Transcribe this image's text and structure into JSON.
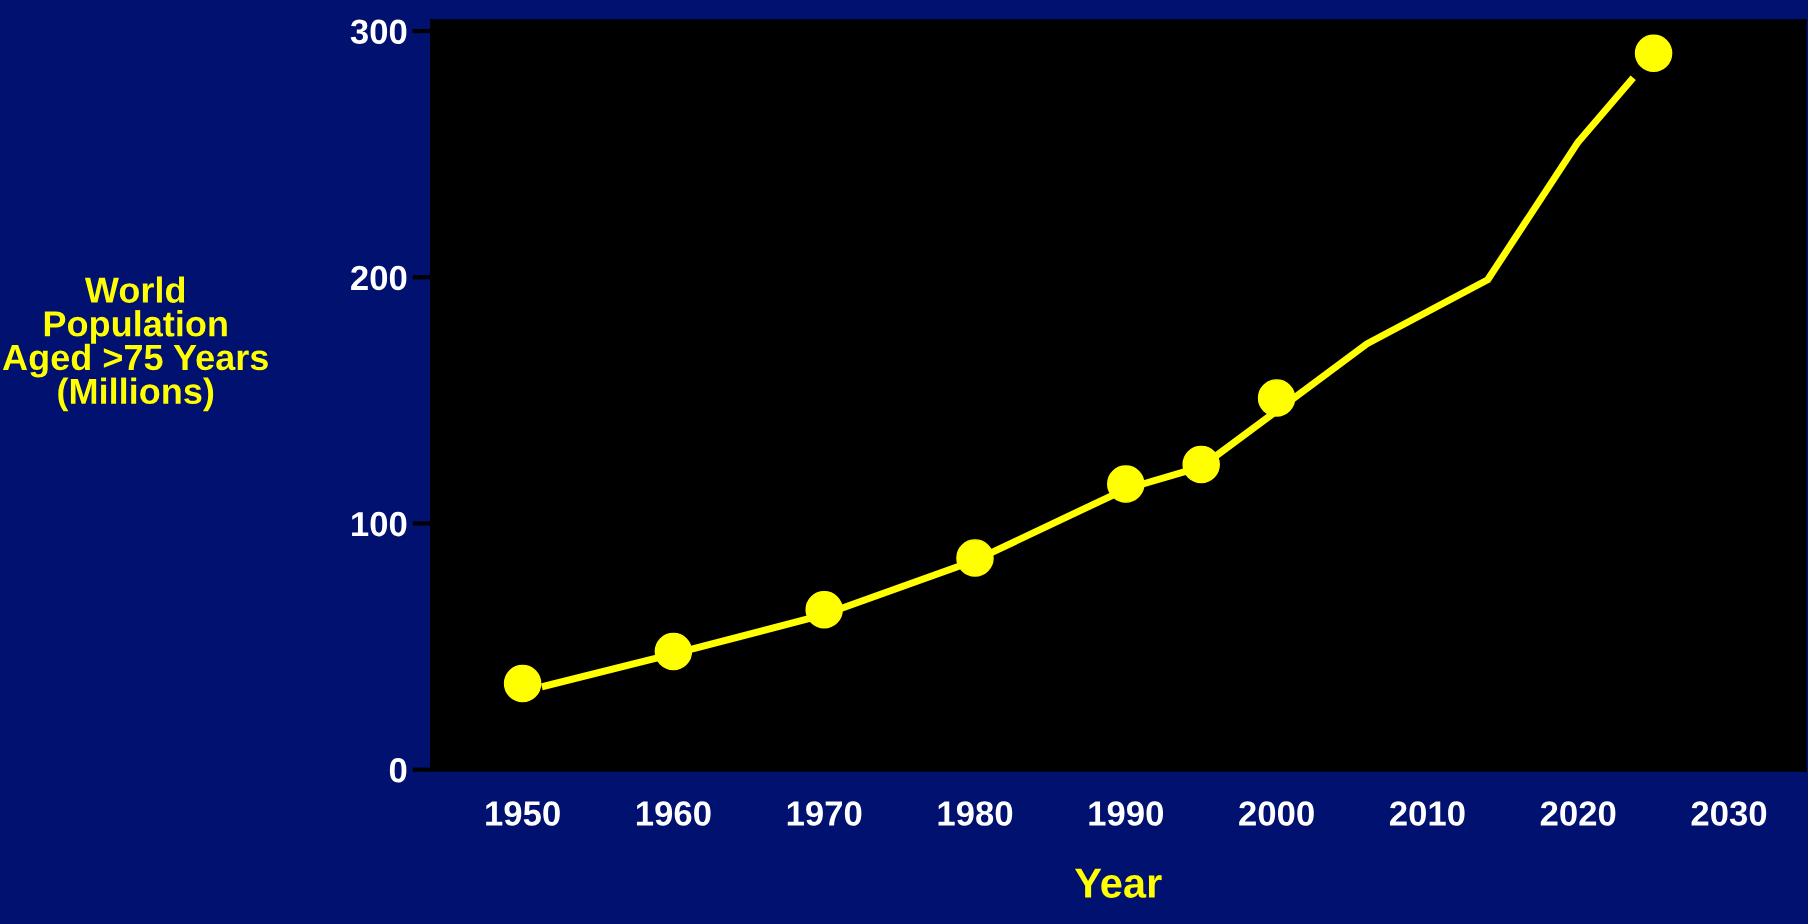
{
  "chart_data": {
    "type": "line",
    "xlabel": "Year",
    "ylabel": "World\nPopulation\nAged >75 Years\n(Millions)",
    "xlim": [
      1944,
      2035
    ],
    "xticks": [
      1950,
      1960,
      1970,
      1980,
      1990,
      2000,
      2010,
      2020,
      2030
    ],
    "ylim": [
      0,
      304
    ],
    "yticks": [
      0,
      100,
      200,
      300
    ],
    "grid": false,
    "series": [
      {
        "type": "line",
        "color": "#ffff00",
        "marker": "none",
        "x": [
          1951.5,
          1960,
          1970,
          1980,
          1990,
          1995,
          2006,
          2014,
          2020,
          2023.5
        ],
        "values": [
          34,
          47,
          63,
          85,
          114,
          123,
          173,
          199,
          255,
          280
        ]
      },
      {
        "type": "scatter",
        "color": "#ffff00",
        "marker": "circle",
        "x": [
          1950,
          1960,
          1970,
          1980,
          1990,
          1995,
          2000,
          2025
        ],
        "values": [
          35,
          48,
          65,
          86,
          116,
          124,
          151,
          291
        ]
      }
    ]
  }
}
